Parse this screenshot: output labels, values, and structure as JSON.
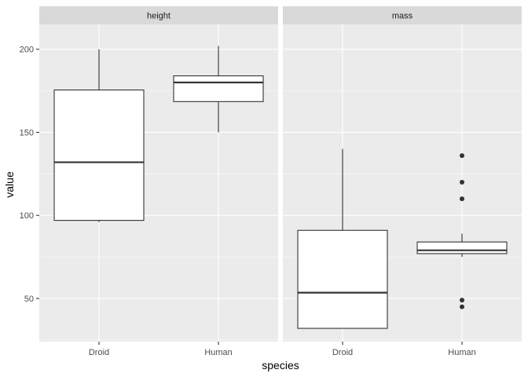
{
  "chart_data": {
    "type": "boxplot",
    "xlabel": "species",
    "ylabel": "value",
    "ylim": [
      24,
      215
    ],
    "y_ticks": [
      50,
      100,
      150,
      200
    ],
    "y_tick_labels": [
      "50",
      "100",
      "150",
      "200"
    ],
    "categories": [
      "Droid",
      "Human"
    ],
    "grid": true,
    "facets": [
      {
        "name": "height",
        "boxes": [
          {
            "category": "Droid",
            "min": 96,
            "q1": 97,
            "median": 132,
            "q3": 175.5,
            "max": 200,
            "outliers": []
          },
          {
            "category": "Human",
            "min": 150,
            "q1": 168.5,
            "median": 180,
            "q3": 184,
            "max": 202,
            "outliers": []
          }
        ]
      },
      {
        "name": "mass",
        "boxes": [
          {
            "category": "Droid",
            "min": 32,
            "q1": 32,
            "median": 53.5,
            "q3": 91,
            "max": 140,
            "outliers": []
          },
          {
            "category": "Human",
            "min": 75,
            "q1": 77,
            "median": 79,
            "q3": 84,
            "max": 89,
            "outliers": [
              136,
              120,
              110,
              49,
              45
            ]
          }
        ]
      }
    ]
  },
  "colors": {
    "panel_bg": "#ebebeb",
    "strip_bg": "#d9d9d9",
    "grid_major": "#ffffff",
    "box_fill": "#ffffff",
    "box_stroke": "#333333",
    "outlier": "#333333"
  }
}
